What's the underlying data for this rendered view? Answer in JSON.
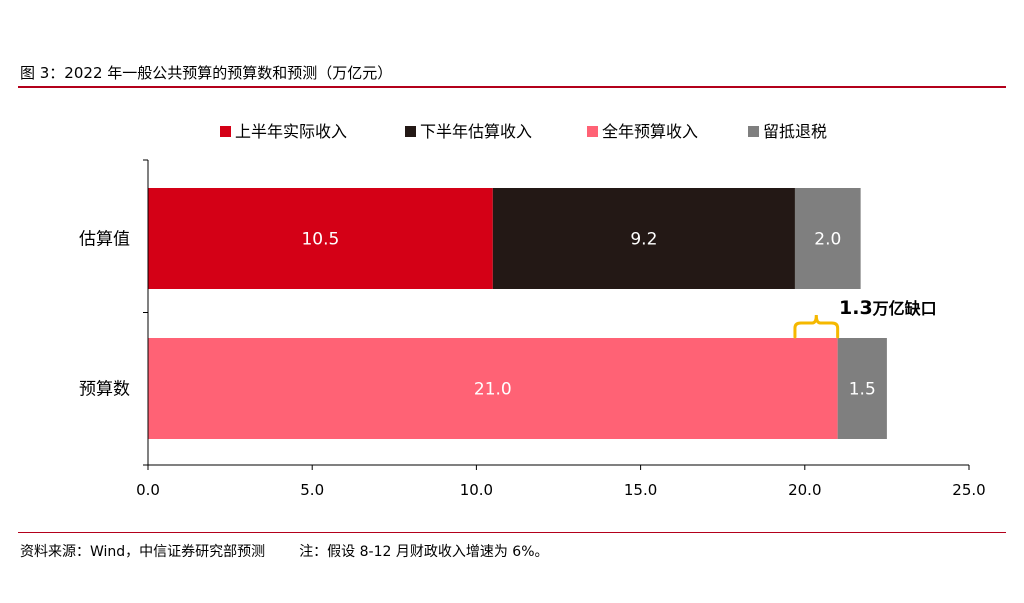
{
  "title": "图 3：2022 年一般公共预算的预算数和预测（万亿元）",
  "footer": {
    "source": "资料来源：Wind，中信证券研究部预测",
    "note": "注：假设 8-12 月财政收入增速为 6%。"
  },
  "colors": {
    "rule": "#b3001b",
    "h1_actual": "#d40016",
    "h2_estimate": "#231815",
    "full_year_budget": "#ff6275",
    "tax_rebate": "#7f7f7f",
    "bracket": "#f5b800"
  },
  "chart_data": {
    "type": "bar",
    "orientation": "horizontal",
    "stacked": true,
    "title": "图 3：2022 年一般公共预算的预算数和预测（万亿元）",
    "categories": [
      "估算值",
      "预算数"
    ],
    "series": [
      {
        "name": "上半年实际收入",
        "values": [
          10.5,
          null
        ],
        "labels": [
          "10.5",
          ""
        ]
      },
      {
        "name": "下半年估算收入",
        "values": [
          9.2,
          null
        ],
        "labels": [
          "9.2",
          ""
        ]
      },
      {
        "name": "全年预算收入",
        "values": [
          null,
          21.0
        ],
        "labels": [
          "",
          "21.0"
        ]
      },
      {
        "name": "留抵退税",
        "values": [
          2.0,
          1.5
        ],
        "labels": [
          "2.0",
          "1.5"
        ]
      }
    ],
    "xlim": [
      0,
      25
    ],
    "xticks": [
      "0.0",
      "5.0",
      "10.0",
      "15.0",
      "20.0",
      "25.0"
    ],
    "xlabel": "",
    "ylabel": "",
    "legend_position": "top",
    "grid": false,
    "annotation": {
      "text_bold": "1.3",
      "text_unit": "万亿缺口",
      "from": 19.7,
      "to": 21.0
    }
  }
}
